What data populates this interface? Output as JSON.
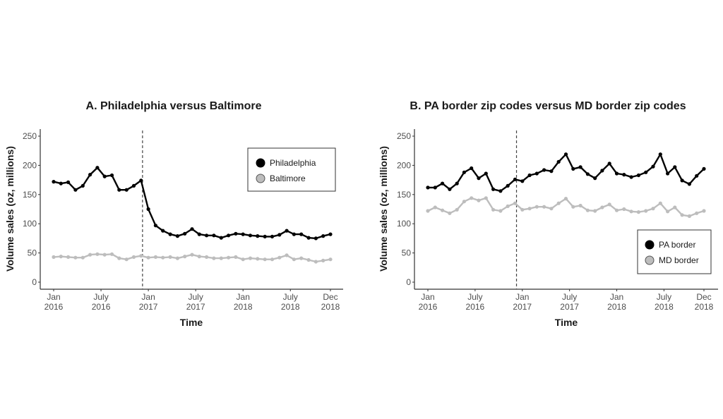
{
  "chart_data": [
    {
      "type": "line",
      "title": "A. Philadelphia versus Baltimore",
      "xlabel": "Time",
      "ylabel": "Volume sales (oz, millions)",
      "ylim": [
        0,
        250
      ],
      "yticks": [
        0,
        50,
        100,
        150,
        200,
        250
      ],
      "xtick_labels": [
        {
          "period_index": 0,
          "line1": "Jan",
          "line2": "2016"
        },
        {
          "period_index": 6.5,
          "line1": "July",
          "line2": "2016"
        },
        {
          "period_index": 13,
          "line1": "Jan",
          "line2": "2017"
        },
        {
          "period_index": 19.5,
          "line1": "July",
          "line2": "2017"
        },
        {
          "period_index": 26,
          "line1": "Jan",
          "line2": "2018"
        },
        {
          "period_index": 32.5,
          "line1": "July",
          "line2": "2018"
        },
        {
          "period_index": 38,
          "line1": "Dec",
          "line2": "2018"
        }
      ],
      "n_periods": 39,
      "intervention_period_index": 12.2,
      "grid": false,
      "legend_position": "top-right",
      "series": [
        {
          "name": "Philadelphia",
          "color": "#000000",
          "values": [
            172,
            169,
            171,
            158,
            165,
            184,
            196,
            181,
            183,
            158,
            158,
            165,
            174,
            125,
            97,
            88,
            82,
            79,
            83,
            91,
            82,
            80,
            80,
            76,
            80,
            83,
            82,
            80,
            79,
            78,
            78,
            81,
            88,
            82,
            82,
            76,
            75,
            79,
            82
          ]
        },
        {
          "name": "Baltimore",
          "color": "#bdbdbd",
          "values": [
            43,
            44,
            43,
            42,
            42,
            47,
            48,
            47,
            48,
            41,
            39,
            43,
            45,
            42,
            43,
            42,
            43,
            41,
            44,
            47,
            44,
            43,
            41,
            41,
            42,
            43,
            39,
            41,
            40,
            39,
            39,
            42,
            46,
            39,
            41,
            38,
            35,
            37,
            39
          ]
        }
      ]
    },
    {
      "type": "line",
      "title": "B. PA border zip codes versus MD border zip codes",
      "xlabel": "Time",
      "ylabel": "Volume sales (oz, millions)",
      "ylim": [
        0,
        250
      ],
      "yticks": [
        0,
        50,
        100,
        150,
        200,
        250
      ],
      "xtick_labels": [
        {
          "period_index": 0,
          "line1": "Jan",
          "line2": "2016"
        },
        {
          "period_index": 6.5,
          "line1": "July",
          "line2": "2016"
        },
        {
          "period_index": 13,
          "line1": "Jan",
          "line2": "2017"
        },
        {
          "period_index": 19.5,
          "line1": "July",
          "line2": "2017"
        },
        {
          "period_index": 26,
          "line1": "Jan",
          "line2": "2018"
        },
        {
          "period_index": 32.5,
          "line1": "July",
          "line2": "2018"
        },
        {
          "period_index": 38,
          "line1": "Dec",
          "line2": "2018"
        }
      ],
      "n_periods": 39,
      "intervention_period_index": 12.2,
      "grid": false,
      "legend_position": "bottom-right",
      "series": [
        {
          "name": "PA border",
          "color": "#000000",
          "values": [
            162,
            162,
            169,
            159,
            169,
            188,
            195,
            178,
            186,
            159,
            156,
            165,
            176,
            173,
            183,
            186,
            192,
            190,
            206,
            219,
            194,
            197,
            185,
            178,
            191,
            203,
            186,
            184,
            180,
            183,
            188,
            198,
            219,
            186,
            197,
            174,
            168,
            182,
            194
          ]
        },
        {
          "name": "MD border",
          "color": "#bdbdbd",
          "values": [
            122,
            128,
            123,
            118,
            124,
            138,
            144,
            140,
            144,
            124,
            122,
            130,
            135,
            124,
            126,
            129,
            129,
            126,
            135,
            143,
            129,
            131,
            123,
            122,
            128,
            133,
            123,
            125,
            121,
            120,
            122,
            126,
            135,
            121,
            128,
            115,
            113,
            118,
            122
          ]
        }
      ]
    }
  ]
}
